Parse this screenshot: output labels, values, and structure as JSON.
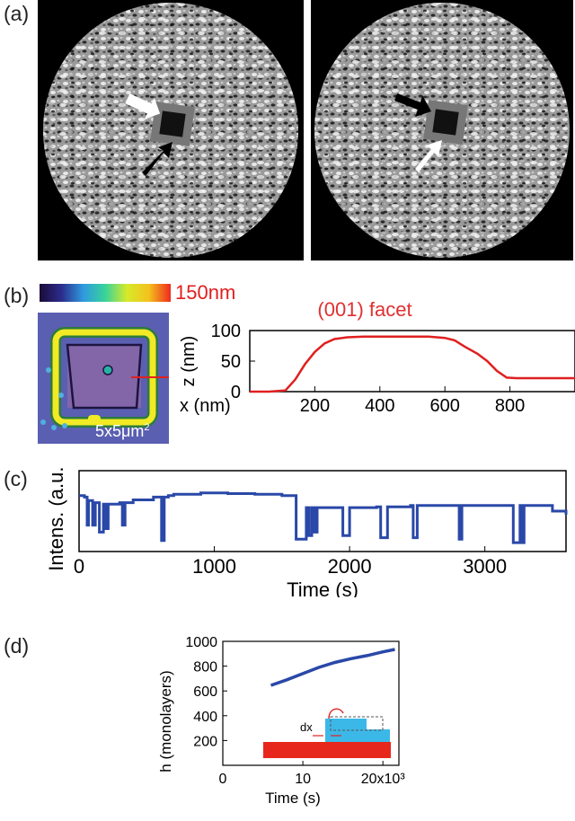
{
  "panels": {
    "a": {
      "label": "(a)"
    },
    "b": {
      "label": "(b)",
      "colorbar_max": "150nm",
      "afm_scale": "5x5μm",
      "afm_scale_sup": "2",
      "facet_title": "(001) facet"
    },
    "c": {
      "label": "(c)"
    },
    "d": {
      "label": "(d)",
      "inset_label": "dx"
    }
  },
  "colors": {
    "profile_line": "#e02020",
    "trace_line": "#2a48a8",
    "facet_text": "#e03030",
    "inset_block": "#e8271c",
    "inset_step": "#3cb8e8",
    "afm_background": "#5a5fb2"
  },
  "chart_data": [
    {
      "id": "b-profile",
      "type": "line",
      "xlabel": "x (nm)",
      "ylabel": "z (nm)",
      "title": "(001) facet",
      "xlim": [
        0,
        1000
      ],
      "ylim": [
        0,
        100
      ],
      "xticks": [
        200,
        400,
        600,
        800
      ],
      "yticks": [
        0,
        50,
        100
      ],
      "x": [
        0,
        60,
        110,
        140,
        170,
        200,
        230,
        260,
        300,
        350,
        400,
        450,
        500,
        550,
        600,
        630,
        660,
        700,
        730,
        760,
        790,
        820,
        900,
        1000
      ],
      "y": [
        0,
        0,
        2,
        20,
        45,
        65,
        79,
        86,
        89,
        90,
        90,
        90,
        90,
        90,
        88,
        84,
        74,
        62,
        50,
        34,
        23,
        22,
        22,
        22
      ]
    },
    {
      "id": "c-trace",
      "type": "line",
      "xlabel": "Time (s)",
      "ylabel": "Intens. (a.u.)",
      "xlim": [
        0,
        3600
      ],
      "xticks": [
        0,
        1000,
        2000,
        3000
      ],
      "segments_high_low": "telegraph-like switching between high and low intensity levels",
      "x": [
        0,
        40,
        60,
        70,
        100,
        120,
        150,
        180,
        200,
        215,
        240,
        300,
        320,
        340,
        380,
        400,
        550,
        600,
        610,
        630,
        660,
        700,
        900,
        1100,
        1300,
        1500,
        1600,
        1605,
        1650,
        1680,
        1700,
        1720,
        1740,
        1760,
        1800,
        1900,
        1950,
        2000,
        2030,
        2200,
        2230,
        2280,
        2320,
        2450,
        2470,
        2500,
        2700,
        2800,
        2810,
        2830,
        2850,
        3100,
        3150,
        3200,
        3210,
        3260,
        3270,
        3290,
        3330,
        3500,
        3600
      ],
      "y": [
        0.72,
        0.7,
        0.3,
        0.65,
        0.3,
        0.62,
        0.2,
        0.6,
        0.25,
        0.6,
        0.6,
        0.62,
        0.3,
        0.62,
        0.62,
        0.66,
        0.7,
        0.7,
        0.08,
        0.7,
        0.72,
        0.74,
        0.76,
        0.75,
        0.74,
        0.72,
        0.72,
        0.1,
        0.1,
        0.55,
        0.15,
        0.55,
        0.2,
        0.55,
        0.55,
        0.55,
        0.15,
        0.55,
        0.55,
        0.56,
        0.12,
        0.56,
        0.56,
        0.58,
        0.12,
        0.58,
        0.58,
        0.58,
        0.1,
        0.58,
        0.58,
        0.58,
        0.58,
        0.58,
        0.05,
        0.58,
        0.05,
        0.58,
        0.58,
        0.5,
        0.45
      ]
    },
    {
      "id": "d-growth",
      "type": "line",
      "xlabel": "Time (s)",
      "ylabel": "h (monolayers)",
      "xlim": [
        0,
        22000
      ],
      "ylim": [
        0,
        1000
      ],
      "xticks": [
        "0",
        "10",
        "20x10³"
      ],
      "xtick_values": [
        0,
        10000,
        20000
      ],
      "yticks": [
        200,
        400,
        600,
        800,
        1000
      ],
      "x": [
        6000,
        8000,
        10000,
        12000,
        14000,
        16000,
        18000,
        20000,
        21500
      ],
      "y": [
        645,
        690,
        740,
        790,
        830,
        860,
        885,
        915,
        935
      ]
    }
  ]
}
